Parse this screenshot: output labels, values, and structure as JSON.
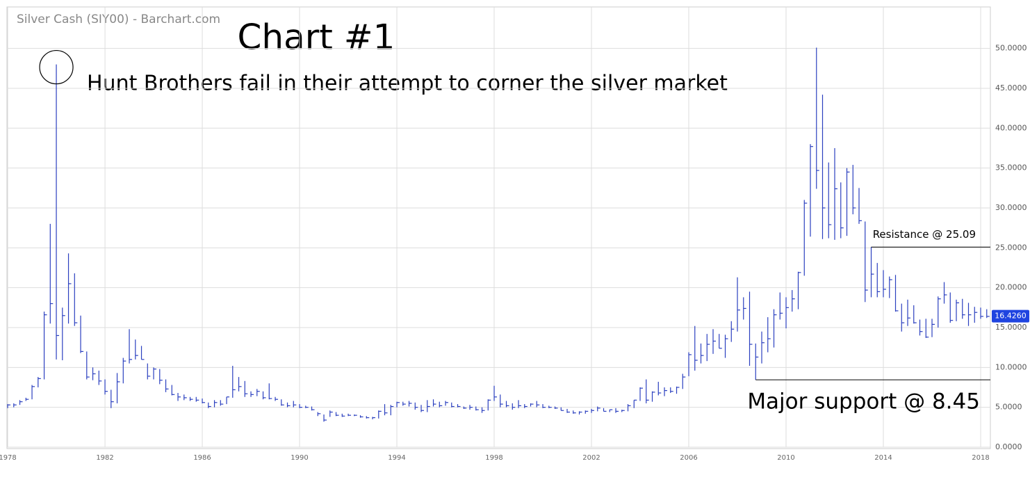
{
  "chart_data": {
    "type": "ohlc",
    "source": "Silver Cash (SIY00) - Barchart.com",
    "title": "Chart #1",
    "annotation": "Hunt Brothers fail in their attempt to corner the silver market",
    "resistance": {
      "value": 25.09,
      "x_start": 2013.5,
      "text": "Resistance @ 25.09"
    },
    "support": {
      "value": 8.45,
      "x_start": 2008.75,
      "text": "Major support @ 8.45"
    },
    "last_price": {
      "value": 16.426,
      "label": "16.4260"
    },
    "color": "#2a3fbf",
    "grid": true,
    "xlim": [
      1977.97,
      2018.4
    ],
    "ylim": [
      0,
      55.2
    ],
    "xticks": [
      1978,
      1982,
      1986,
      1990,
      1994,
      1998,
      2002,
      2006,
      2010,
      2014,
      2018
    ],
    "yticks": [
      {
        "value": 0,
        "label": "0.0000"
      },
      {
        "value": 5,
        "label": "5.0000"
      },
      {
        "value": 10,
        "label": "10.0000"
      },
      {
        "value": 15,
        "label": "15.0000"
      },
      {
        "value": 20,
        "label": "20.0000"
      },
      {
        "value": 25,
        "label": "25.0000"
      },
      {
        "value": 30,
        "label": "30.0000"
      },
      {
        "value": 35,
        "label": "35.0000"
      },
      {
        "value": 40,
        "label": "40.0000"
      },
      {
        "value": 45,
        "label": "45.0000"
      },
      {
        "value": 50,
        "label": "50.0000"
      }
    ],
    "x": [
      1978,
      1978.25,
      1978.5,
      1978.75,
      1979,
      1979.25,
      1979.5,
      1979.75,
      1980,
      1980.25,
      1980.5,
      1980.75,
      1981,
      1981.25,
      1981.5,
      1981.75,
      1982,
      1982.25,
      1982.5,
      1982.75,
      1983,
      1983.25,
      1983.5,
      1983.75,
      1984,
      1984.25,
      1984.5,
      1984.75,
      1985,
      1985.25,
      1985.5,
      1985.75,
      1986,
      1986.25,
      1986.5,
      1986.75,
      1987,
      1987.25,
      1987.5,
      1987.75,
      1988,
      1988.25,
      1988.5,
      1988.75,
      1989,
      1989.25,
      1989.5,
      1989.75,
      1990,
      1990.25,
      1990.5,
      1990.75,
      1991,
      1991.25,
      1991.5,
      1991.75,
      1992,
      1992.25,
      1992.5,
      1992.75,
      1993,
      1993.25,
      1993.5,
      1993.75,
      1994,
      1994.25,
      1994.5,
      1994.75,
      1995,
      1995.25,
      1995.5,
      1995.75,
      1996,
      1996.25,
      1996.5,
      1996.75,
      1997,
      1997.25,
      1997.5,
      1997.75,
      1998,
      1998.25,
      1998.5,
      1998.75,
      1999,
      1999.25,
      1999.5,
      1999.75,
      2000,
      2000.25,
      2000.5,
      2000.75,
      2001,
      2001.25,
      2001.5,
      2001.75,
      2002,
      2002.25,
      2002.5,
      2002.75,
      2003,
      2003.25,
      2003.5,
      2003.75,
      2004,
      2004.25,
      2004.5,
      2004.75,
      2005,
      2005.25,
      2005.5,
      2005.75,
      2006,
      2006.25,
      2006.5,
      2006.75,
      2007,
      2007.25,
      2007.5,
      2007.75,
      2008,
      2008.25,
      2008.5,
      2008.75,
      2009,
      2009.25,
      2009.5,
      2009.75,
      2010,
      2010.25,
      2010.5,
      2010.75,
      2011,
      2011.25,
      2011.5,
      2011.75,
      2012,
      2012.25,
      2012.5,
      2012.75,
      2013,
      2013.25,
      2013.5,
      2013.75,
      2014,
      2014.25,
      2014.5,
      2014.75,
      2015,
      2015.25,
      2015.5,
      2015.75,
      2016,
      2016.25,
      2016.5,
      2016.75,
      2017,
      2017.25,
      2017.5,
      2017.75,
      2018,
      2018.25
    ],
    "high": [
      5.4,
      5.5,
      5.9,
      6.2,
      7.8,
      8.8,
      17,
      28,
      48,
      17.5,
      24.3,
      21.8,
      16.5,
      12.0,
      10.0,
      9.6,
      8.5,
      7.2,
      9.3,
      11.2,
      14.8,
      13.5,
      12.7,
      10.5,
      10.0,
      9.8,
      8.5,
      7.8,
      6.8,
      6.6,
      6.3,
      6.3,
      6.1,
      5.6,
      5.9,
      5.9,
      6.3,
      10.2,
      8.8,
      8.3,
      7.0,
      7.3,
      7.0,
      8.0,
      6.3,
      6.0,
      5.6,
      5.8,
      5.4,
      5.2,
      5.1,
      4.4,
      4.1,
      4.6,
      4.4,
      4.2,
      4.2,
      4.1,
      4.0,
      3.9,
      3.8,
      4.6,
      5.4,
      5.3,
      5.7,
      5.7,
      5.8,
      5.6,
      5.3,
      5.9,
      6.0,
      5.7,
      5.8,
      5.6,
      5.4,
      5.1,
      5.3,
      5.1,
      5.0,
      6.0,
      7.7,
      6.6,
      5.8,
      5.5,
      5.9,
      5.4,
      5.5,
      5.8,
      5.4,
      5.2,
      5.1,
      5.0,
      4.8,
      4.6,
      4.5,
      4.6,
      4.8,
      5.1,
      4.9,
      4.7,
      4.9,
      4.7,
      5.4,
      5.9,
      7.5,
      8.5,
      7.0,
      8.2,
      7.5,
      7.5,
      7.6,
      9.2,
      11.9,
      15.2,
      13.0,
      14.2,
      14.8,
      14.2,
      14.1,
      15.8,
      21.3,
      18.8,
      19.5,
      13.0,
      14.5,
      16.3,
      17.3,
      19.4,
      18.8,
      19.7,
      22.0,
      31.0,
      38.0,
      50.1,
      44.2,
      35.7,
      37.5,
      33.2,
      35.0,
      35.4,
      32.5,
      28.3,
      25.1,
      23.1,
      22.2,
      21.4,
      21.6,
      18.0,
      18.5,
      17.8,
      16.0,
      16.1,
      16.1,
      18.9,
      20.7,
      19.4,
      18.5,
      18.6,
      18.1,
      17.6,
      17.5,
      17.3
    ],
    "low": [
      4.9,
      5.0,
      5.3,
      5.8,
      6.0,
      7.5,
      8.5,
      15.5,
      11,
      10.9,
      15.5,
      15.2,
      11.8,
      8.5,
      8.4,
      7.8,
      6.6,
      4.9,
      5.5,
      8.0,
      10.5,
      11.0,
      11.0,
      8.5,
      8.5,
      7.9,
      6.9,
      6.5,
      5.8,
      5.9,
      5.8,
      5.7,
      5.5,
      4.9,
      5.0,
      5.2,
      5.4,
      6.2,
      7.0,
      6.3,
      6.3,
      6.4,
      6.0,
      6.0,
      5.8,
      5.2,
      5.0,
      5.0,
      4.9,
      4.9,
      4.6,
      3.9,
      3.2,
      3.8,
      3.9,
      3.8,
      3.9,
      3.9,
      3.7,
      3.6,
      3.5,
      3.6,
      4.0,
      4.0,
      5.0,
      5.2,
      5.1,
      4.7,
      4.4,
      4.4,
      5.1,
      5.0,
      5.2,
      5.0,
      5.0,
      4.8,
      4.7,
      4.6,
      4.3,
      4.6,
      5.8,
      5.0,
      5.0,
      4.7,
      4.9,
      4.9,
      5.1,
      5.0,
      4.9,
      4.9,
      4.8,
      4.6,
      4.3,
      4.2,
      4.1,
      4.2,
      4.3,
      4.5,
      4.5,
      4.4,
      4.3,
      4.4,
      4.5,
      4.9,
      5.8,
      5.5,
      5.7,
      6.5,
      6.4,
      6.8,
      6.7,
      7.3,
      8.9,
      9.6,
      10.5,
      10.8,
      11.7,
      12.4,
      11.2,
      13.2,
      14.5,
      16.0,
      10.2,
      8.45,
      10.5,
      11.9,
      12.5,
      16.0,
      14.9,
      17.0,
      17.3,
      21.5,
      26.4,
      32.4,
      26.1,
      26.2,
      26.0,
      26.2,
      26.5,
      29.2,
      28.0,
      18.2,
      18.8,
      18.8,
      18.8,
      18.7,
      17.0,
      14.5,
      15.2,
      15.5,
      14.0,
      13.7,
      13.8,
      15.0,
      18.0,
      15.6,
      15.8,
      16.1,
      15.2,
      15.6,
      16.1,
      16.2
    ],
    "close": [
      5.3,
      5.3,
      5.7,
      6.0,
      7.6,
      8.6,
      16.6,
      18.0,
      14,
      16.5,
      20.5,
      15.6,
      12.0,
      8.8,
      9.2,
      8.3,
      7.0,
      5.7,
      8.2,
      10.8,
      11.0,
      11.5,
      11.0,
      8.9,
      9.8,
      8.4,
      7.3,
      6.6,
      6.3,
      6.2,
      6.0,
      5.9,
      5.6,
      5.1,
      5.6,
      5.4,
      6.3,
      7.2,
      7.6,
      6.7,
      6.6,
      7.0,
      6.2,
      6.1,
      6.0,
      5.3,
      5.2,
      5.3,
      5.0,
      5.0,
      4.7,
      4.2,
      3.4,
      4.4,
      4.0,
      3.9,
      4.0,
      4.0,
      3.8,
      3.7,
      3.7,
      4.5,
      4.3,
      5.1,
      5.6,
      5.4,
      5.5,
      5.0,
      4.6,
      5.1,
      5.4,
      5.2,
      5.6,
      5.1,
      5.1,
      4.9,
      5.0,
      4.7,
      4.6,
      5.9,
      6.3,
      5.4,
      5.2,
      5.0,
      5.2,
      5.1,
      5.4,
      5.3,
      5.0,
      5.0,
      4.9,
      4.6,
      4.4,
      4.3,
      4.4,
      4.5,
      4.6,
      4.9,
      4.5,
      4.7,
      4.5,
      4.6,
      5.2,
      5.9,
      7.4,
      5.9,
      6.9,
      6.8,
      7.1,
      7.0,
      7.5,
      8.8,
      11.6,
      10.9,
      11.5,
      12.9,
      13.3,
      12.4,
      13.6,
      14.8,
      17.2,
      17.4,
      12.9,
      11.3,
      13.1,
      13.6,
      16.6,
      16.8,
      17.5,
      18.6,
      21.9,
      30.6,
      37.7,
      34.7,
      30.0,
      27.9,
      32.4,
      27.5,
      34.5,
      30.0,
      28.4,
      19.7,
      21.7,
      19.5,
      19.8,
      21.0,
      17.1,
      15.6,
      16.2,
      15.6,
      14.5,
      13.8,
      15.4,
      18.6,
      19.1,
      15.9,
      18.1,
      16.6,
      16.6,
      16.9,
      16.4,
      16.4
    ]
  }
}
